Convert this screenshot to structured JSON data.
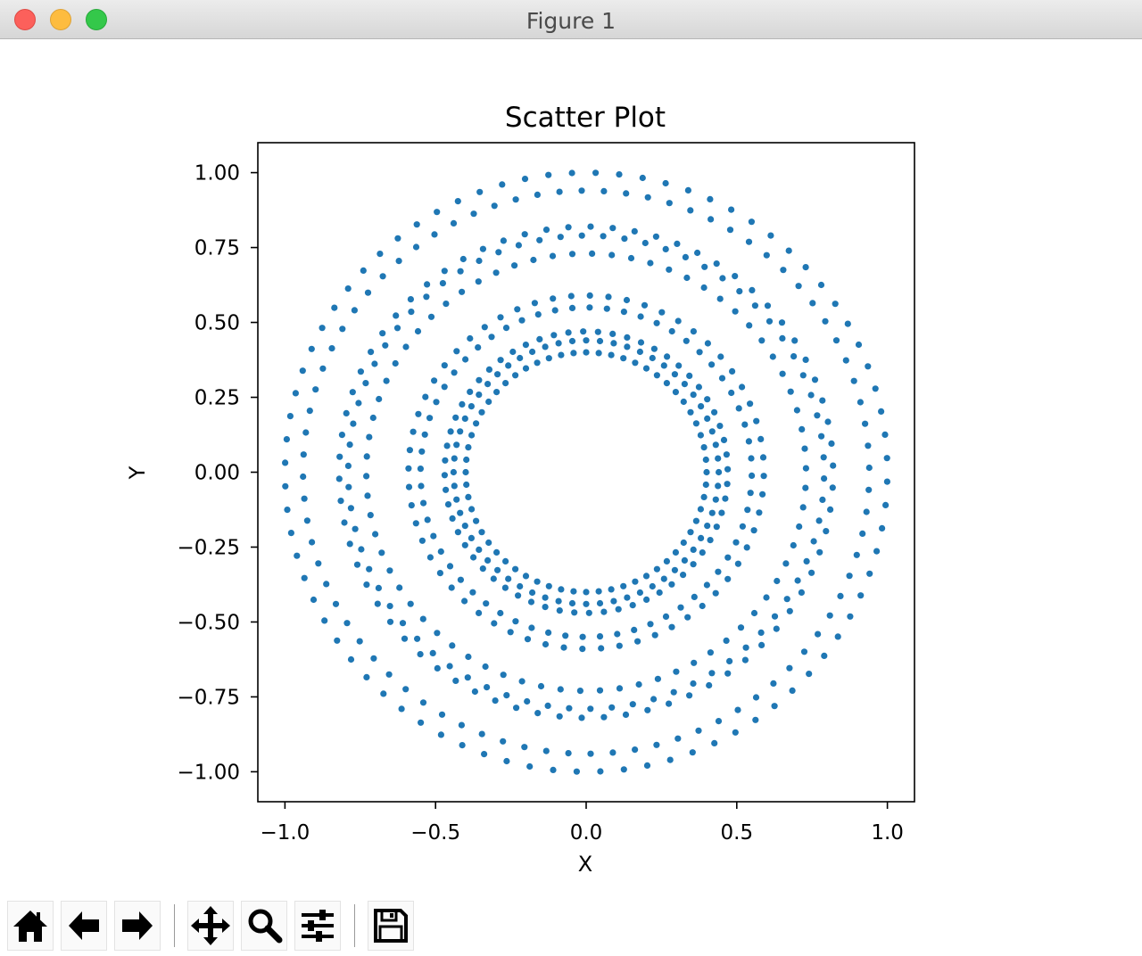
{
  "window": {
    "title": "Figure 1"
  },
  "chart_data": {
    "type": "scatter",
    "title": "Scatter Plot",
    "xlabel": "X",
    "ylabel": "Y",
    "xlim": [
      -1.09,
      1.09
    ],
    "ylim": [
      -1.1,
      1.1
    ],
    "xticks": [
      -1.0,
      -0.5,
      0.0,
      0.5,
      1.0
    ],
    "xtick_labels": [
      "−1.0",
      "−0.5",
      "0.0",
      "0.5",
      "1.0"
    ],
    "yticks": [
      1.0,
      0.75,
      0.5,
      0.25,
      0.0,
      -0.25,
      -0.5,
      -0.75,
      -1.0
    ],
    "ytick_labels": [
      "1.00",
      "0.75",
      "0.50",
      "0.25",
      "0.00",
      "−0.25",
      "−0.50",
      "−0.75",
      "−1.00"
    ],
    "grid": false,
    "color": "#1f77b4",
    "description": "points lie on concentric rings",
    "rings": [
      {
        "radius": 0.4,
        "points": 60,
        "phase": 0.0
      },
      {
        "radius": 0.44,
        "points": 60,
        "phase": 0.05
      },
      {
        "radius": 0.47,
        "points": 60,
        "phase": 0.02
      },
      {
        "radius": 0.55,
        "points": 60,
        "phase": 0.08
      },
      {
        "radius": 0.59,
        "points": 60,
        "phase": 0.03
      },
      {
        "radius": 0.73,
        "points": 70,
        "phase": 0.06
      },
      {
        "radius": 0.79,
        "points": 70,
        "phase": 0.01
      },
      {
        "radius": 0.82,
        "points": 70,
        "phase": 0.09
      },
      {
        "radius": 0.94,
        "points": 80,
        "phase": 0.04
      },
      {
        "radius": 1.0,
        "points": 80,
        "phase": 0.07
      }
    ]
  },
  "toolbar": {
    "buttons": [
      {
        "name": "home-button",
        "icon": "home-icon"
      },
      {
        "name": "back-button",
        "icon": "arrow-left-icon"
      },
      {
        "name": "forward-button",
        "icon": "arrow-right-icon"
      },
      {
        "name": "pan-button",
        "icon": "move-icon"
      },
      {
        "name": "zoom-button",
        "icon": "magnifier-icon"
      },
      {
        "name": "configure-subplots-button",
        "icon": "sliders-icon"
      },
      {
        "name": "save-button",
        "icon": "floppy-disk-icon"
      }
    ]
  }
}
